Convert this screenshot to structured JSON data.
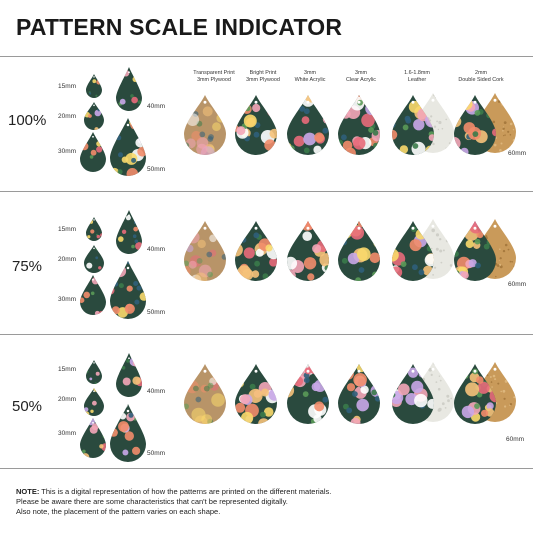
{
  "title": "PATTERN SCALE INDICATOR",
  "materials": [
    {
      "line1": "Transparent Print",
      "line2": "3mm Plywood"
    },
    {
      "line1": "Bright Print",
      "line2": "3mm Plywood"
    },
    {
      "line1": "3mm",
      "line2": "White Acrylic"
    },
    {
      "line1": "3mm",
      "line2": "Clear Acrylic"
    },
    {
      "line1": "1.6-1.8mm",
      "line2": "Leather"
    },
    {
      "line1": "2mm",
      "line2": "Double Sided Cork"
    }
  ],
  "sizes": {
    "s15": "15mm",
    "s20": "20mm",
    "s30": "30mm",
    "s40": "40mm",
    "s50": "50mm",
    "s60": "60mm"
  },
  "rows": [
    {
      "scale": "100%"
    },
    {
      "scale": "75%"
    },
    {
      "scale": "50%"
    }
  ],
  "note": {
    "label": "NOTE:",
    "line1": " This is a digital representation of how the patterns are printed on the different materials.",
    "line2": "Please be aware there are some characteristics that can't be represented digitally.",
    "line3": "Also note, the placement of the pattern varies on each shape."
  },
  "colors": {
    "floral_base": "#2a4a3e",
    "plywood_transparent": "#b89468",
    "leather": "#e8e8e2",
    "cork": "#c99a5a"
  }
}
